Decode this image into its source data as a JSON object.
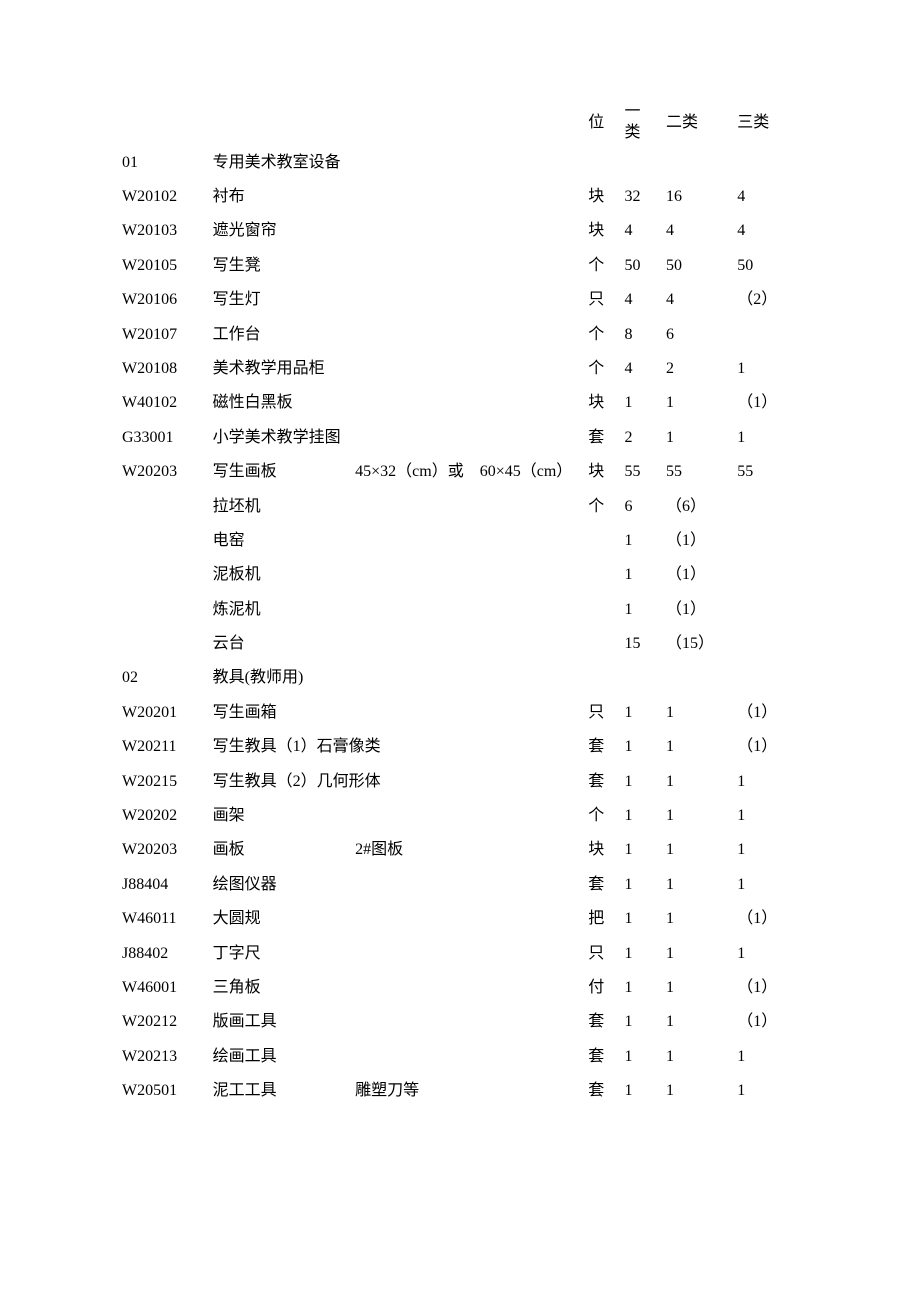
{
  "header": {
    "unit_label": "位",
    "cat1_label": "一类",
    "cat2_label": "二类",
    "cat3_label": "三类"
  },
  "sections": [
    {
      "code": "01",
      "title": "专用美术教室设备",
      "rows": [
        {
          "code": "W20102",
          "name": "衬布",
          "spec": "",
          "unit": "块",
          "c1": "32",
          "c2": "16",
          "c3": "4"
        },
        {
          "code": "W20103",
          "name": "遮光窗帘",
          "spec": "",
          "unit": "块",
          "c1": "4",
          "c2": "4",
          "c3": "4"
        },
        {
          "code": "W20105",
          "name": "写生凳",
          "spec": "",
          "unit": "个",
          "c1": "50",
          "c2": "50",
          "c3": "50"
        },
        {
          "code": "W20106",
          "name": "写生灯",
          "spec": "",
          "unit": "只",
          "c1": "4",
          "c2": "4",
          "c3": "（2）"
        },
        {
          "code": "W20107",
          "name": "工作台",
          "spec": "",
          "unit": "个",
          "c1": "8",
          "c2": "6",
          "c3": ""
        },
        {
          "code": "W20108",
          "name": "美术教学用品柜",
          "spec": "",
          "unit": "个",
          "c1": "4",
          "c2": "2",
          "c3": "1"
        },
        {
          "code": "W40102",
          "name": "磁性白黑板",
          "spec": "",
          "unit": "块",
          "c1": "1",
          "c2": "1",
          "c3": "（1）"
        },
        {
          "code": "G33001",
          "name": "小学美术教学挂图",
          "spec": "",
          "unit": "套",
          "c1": "2",
          "c2": "1",
          "c3": "1"
        },
        {
          "code": "W20203",
          "name": "写生画板",
          "spec": "45×32（cm）或　60×45（cm）",
          "unit": "块",
          "c1": "55",
          "c2": "55",
          "c3": "55"
        },
        {
          "code": "",
          "name": "拉坯机",
          "spec": "",
          "unit": "个",
          "c1": "6",
          "c2": "（6）",
          "c3": ""
        },
        {
          "code": "",
          "name": "电窑",
          "spec": "",
          "unit": "",
          "c1": "1",
          "c2": "（1）",
          "c3": ""
        },
        {
          "code": "",
          "name": "泥板机",
          "spec": "",
          "unit": "",
          "c1": "1",
          "c2": "（1）",
          "c3": ""
        },
        {
          "code": "",
          "name": "炼泥机",
          "spec": "",
          "unit": "",
          "c1": "1",
          "c2": "（1）",
          "c3": ""
        },
        {
          "code": "",
          "name": "云台",
          "spec": "",
          "unit": "",
          "c1": "15",
          "c2": "（15）",
          "c3": ""
        }
      ]
    },
    {
      "code": "02",
      "title": "教具(教师用)",
      "rows": [
        {
          "code": "W20201",
          "name": "写生画箱",
          "spec": "",
          "unit": "只",
          "c1": "1",
          "c2": "1",
          "c3": "（1）"
        },
        {
          "code": "W20211",
          "name": "写生教具（1）石膏像类",
          "spec": "",
          "unit": "套",
          "c1": "1",
          "c2": "1",
          "c3": "（1）",
          "merge": true
        },
        {
          "code": "W20215",
          "name": "写生教具（2）几何形体",
          "spec": "",
          "unit": "套",
          "c1": "1",
          "c2": "1",
          "c3": "1",
          "merge": true
        },
        {
          "code": "W20202",
          "name": "画架",
          "spec": "",
          "unit": "个",
          "c1": "1",
          "c2": "1",
          "c3": "1"
        },
        {
          "code": "W20203",
          "name": "画板",
          "spec": "2#图板",
          "unit": "块",
          "c1": "1",
          "c2": "1",
          "c3": "1"
        },
        {
          "code": "J88404",
          "name": "绘图仪器",
          "spec": "",
          "unit": "套",
          "c1": "1",
          "c2": "1",
          "c3": "1"
        },
        {
          "code": "W46011",
          "name": "大圆规",
          "spec": "",
          "unit": "把",
          "c1": "1",
          "c2": "1",
          "c3": "（1）"
        },
        {
          "code": "J88402",
          "name": "丁字尺",
          "spec": "",
          "unit": "只",
          "c1": "1",
          "c2": "1",
          "c3": "1"
        },
        {
          "code": "W46001",
          "name": "三角板",
          "spec": "",
          "unit": "付",
          "c1": "1",
          "c2": "1",
          "c3": "（1）"
        },
        {
          "code": "W20212",
          "name": "版画工具",
          "spec": "",
          "unit": "套",
          "c1": "1",
          "c2": "1",
          "c3": "（1）"
        },
        {
          "code": "W20213",
          "name": "绘画工具",
          "spec": "",
          "unit": "套",
          "c1": "1",
          "c2": "1",
          "c3": "1"
        },
        {
          "code": "W20501",
          "name": "泥工工具",
          "spec": "雕塑刀等",
          "unit": "套",
          "c1": "1",
          "c2": "1",
          "c3": "1"
        }
      ]
    }
  ]
}
